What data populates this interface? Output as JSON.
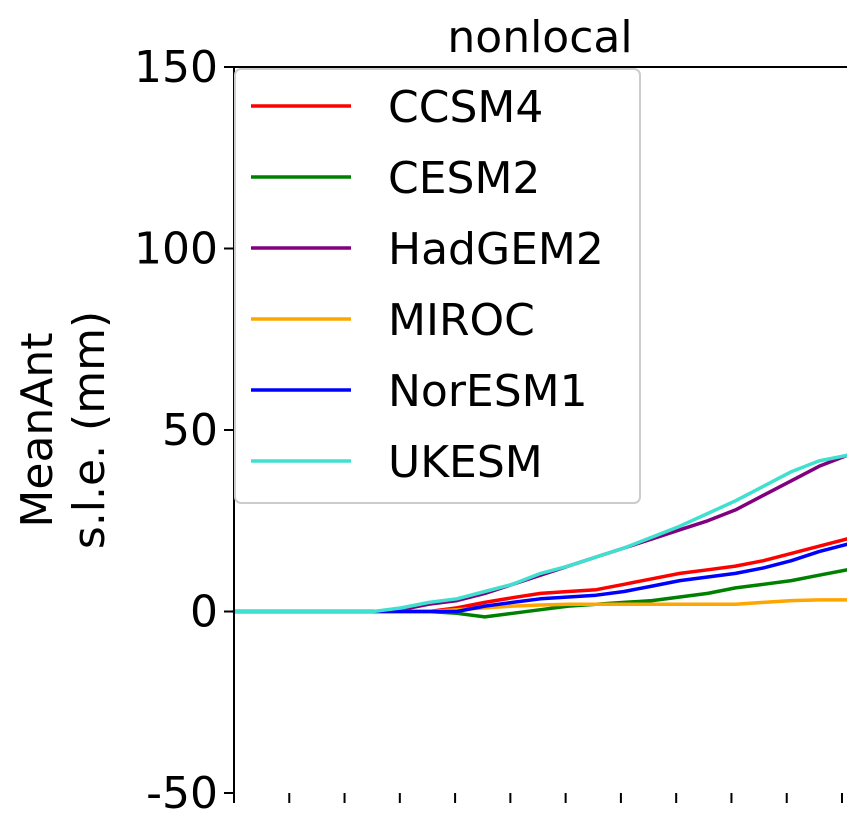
{
  "chart_data": {
    "type": "line",
    "title": "nonlocal",
    "ylabel_lines": [
      "MeanAnt",
      "s.l.e. (mm)"
    ],
    "xlabel": "",
    "ylim": [
      -50,
      150
    ],
    "yticks": [
      -50,
      0,
      50,
      100,
      150
    ],
    "ytick_labels": [
      "-50",
      "0",
      "50",
      "100",
      "150"
    ],
    "xlim": [
      0,
      11
    ],
    "x_tick_count": 12,
    "legend_placement": "upper-left",
    "x": [
      0,
      0.5,
      1,
      1.5,
      2,
      2.5,
      3,
      3.5,
      4,
      4.5,
      5,
      5.5,
      6,
      6.5,
      7,
      7.5,
      8,
      8.5,
      9,
      9.5,
      10,
      10.5,
      11
    ],
    "series": [
      {
        "name": "CCSM4",
        "color": "#ff0000",
        "values": [
          0,
          0,
          0,
          0,
          0,
          0,
          0,
          0,
          1,
          2.5,
          3.8,
          5,
          5.5,
          6,
          7.5,
          9,
          10.5,
          11.5,
          12.5,
          14,
          16,
          18,
          20
        ]
      },
      {
        "name": "CESM2",
        "color": "#008000",
        "values": [
          0,
          0,
          0,
          0,
          0,
          0,
          0,
          0,
          -0.5,
          -1.5,
          -0.5,
          0.5,
          1.5,
          2,
          2.5,
          3,
          4,
          5,
          6.5,
          7.5,
          8.5,
          10,
          11.5
        ]
      },
      {
        "name": "HadGEM2",
        "color": "#800080",
        "values": [
          0,
          0,
          0,
          0,
          0,
          0,
          0.5,
          2,
          3,
          5,
          7.5,
          10,
          12.5,
          15,
          17.5,
          20,
          22.5,
          25,
          28,
          32,
          36,
          40,
          43
        ]
      },
      {
        "name": "MIROC",
        "color": "#ffa500",
        "values": [
          0,
          0,
          0,
          0,
          0,
          0,
          0,
          0,
          0.5,
          1,
          1.5,
          1.8,
          2,
          2,
          2,
          2,
          2,
          2,
          2,
          2.5,
          3,
          3.2,
          3.2
        ]
      },
      {
        "name": "NorESM1",
        "color": "#0000ff",
        "values": [
          0,
          0,
          0,
          0,
          0,
          0,
          0,
          0,
          0,
          1.5,
          2.5,
          3.5,
          4,
          4.5,
          5.5,
          7,
          8.5,
          9.5,
          10.5,
          12,
          14,
          16.5,
          18.5
        ]
      },
      {
        "name": "UKESM",
        "color": "#40e0d0",
        "values": [
          0,
          0,
          0,
          0,
          0,
          0,
          1,
          2.5,
          3.5,
          5.5,
          7.5,
          10.5,
          12.5,
          15,
          17.5,
          20.5,
          23.5,
          27,
          30.5,
          34.5,
          38.5,
          41.5,
          43
        ]
      }
    ]
  }
}
